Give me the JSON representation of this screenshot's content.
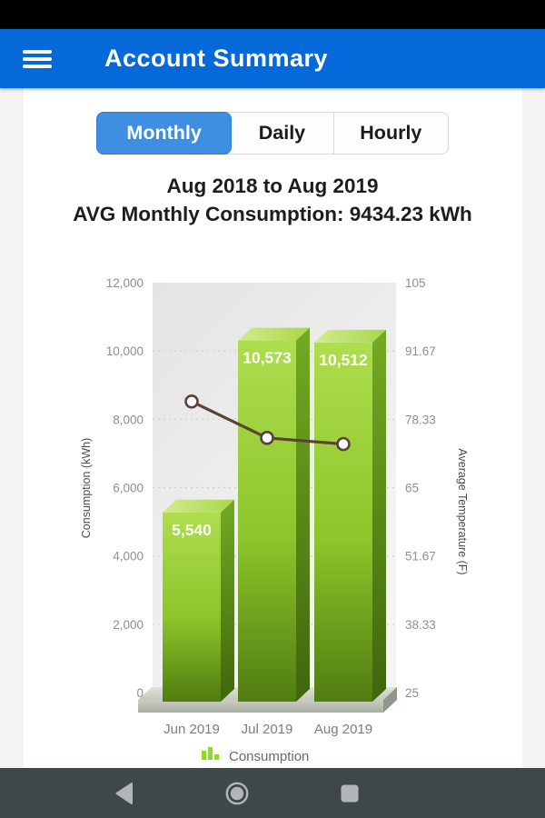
{
  "header": {
    "title": "Account Summary"
  },
  "icons": {
    "menu": "hamburger-menu",
    "back": "back-triangle",
    "home": "home-circle",
    "recents": "recents-square",
    "legend_marker": "mini-bar-chart"
  },
  "colors": {
    "header_blue": "#0669d9",
    "tab_selected_blue": "#3e8ee1",
    "bar_green": "#8cc62a",
    "temp_line_brown": "#5b4237",
    "nav_bar": "#3f474b"
  },
  "tabs": {
    "items": [
      {
        "label": "Monthly",
        "selected": true
      },
      {
        "label": "Daily",
        "selected": false
      },
      {
        "label": "Hourly",
        "selected": false
      }
    ]
  },
  "summary": {
    "line1": "Aug 2018 to Aug 2019",
    "line2": "AVG Monthly Consumption: 9434.23 kWh"
  },
  "chart_data": {
    "type": "bar",
    "style": "3d combo bar+line",
    "title": "Aug 2018 to Aug 2019",
    "subtitle": "AVG Monthly Consumption: 9434.23 kWh",
    "categories": [
      "Jun 2019",
      "Jul 2019",
      "Aug 2019"
    ],
    "series": [
      {
        "name": "Consumption",
        "type": "bar",
        "axis": "left",
        "values": [
          5540,
          10573,
          10512
        ],
        "value_labels": [
          "5,540",
          "10,573",
          "10,512"
        ],
        "color": "#8cc62a"
      },
      {
        "name": "Average Temperature",
        "type": "line",
        "axis": "right",
        "values": [
          81.8,
          74.7,
          73.5
        ],
        "color": "#5b4237"
      }
    ],
    "left_axis": {
      "label": "Consumption (kWh)",
      "min": 0,
      "max": 12000,
      "ticks": [
        "12,000",
        "10,000",
        "8,000",
        "6,000",
        "4,000",
        "2,000",
        "0"
      ]
    },
    "right_axis": {
      "label": "Average Temperature (F)",
      "min": 25,
      "max": 105,
      "ticks": [
        "105",
        "91.67",
        "78.33",
        "65",
        "51.67",
        "38.33",
        "25"
      ]
    },
    "grid": "dashed horizontal lines",
    "legend": {
      "position": "bottom",
      "entries": [
        "Consumption"
      ]
    }
  }
}
